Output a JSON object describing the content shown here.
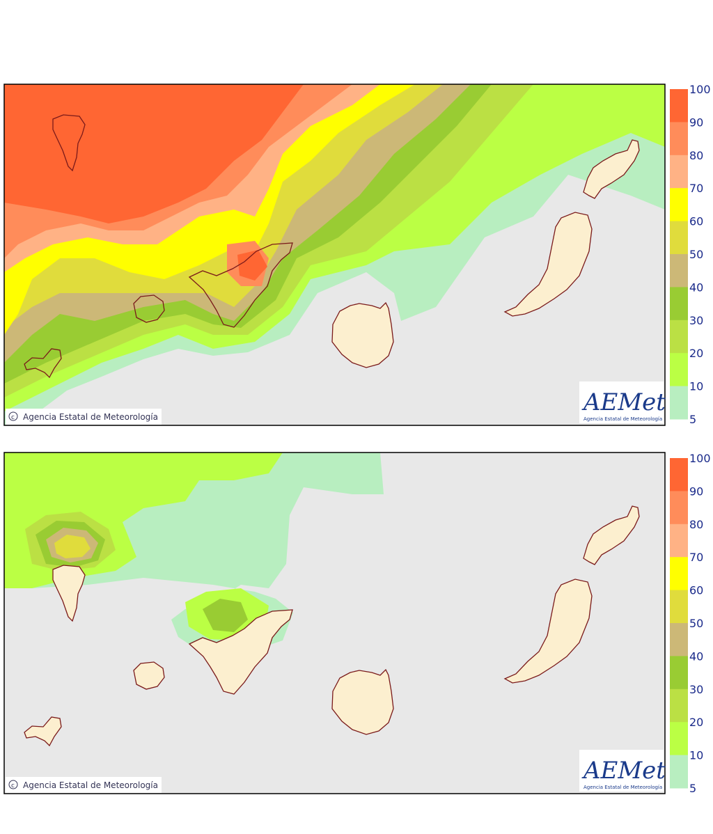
{
  "panels": [
    {
      "credit": "Agencia Estatal de Meteorología",
      "logo": "AEMet",
      "logo_caption": "Agencia Estatal de Meteorología"
    },
    {
      "credit": "Agencia Estatal de Meteorología",
      "logo": "AEMet",
      "logo_caption": "Agencia Estatal de Meteorología"
    }
  ],
  "legend": {
    "labels": [
      100,
      90,
      80,
      70,
      60,
      50,
      40,
      30,
      20,
      10,
      5
    ],
    "colors": [
      "#ff6633",
      "#ff8c5a",
      "#ffb285",
      "#ffff00",
      "#e0dc3c",
      "#ccb877",
      "#99cc33",
      "#bbe044",
      "#bbff44",
      "#b8eec0"
    ]
  }
}
